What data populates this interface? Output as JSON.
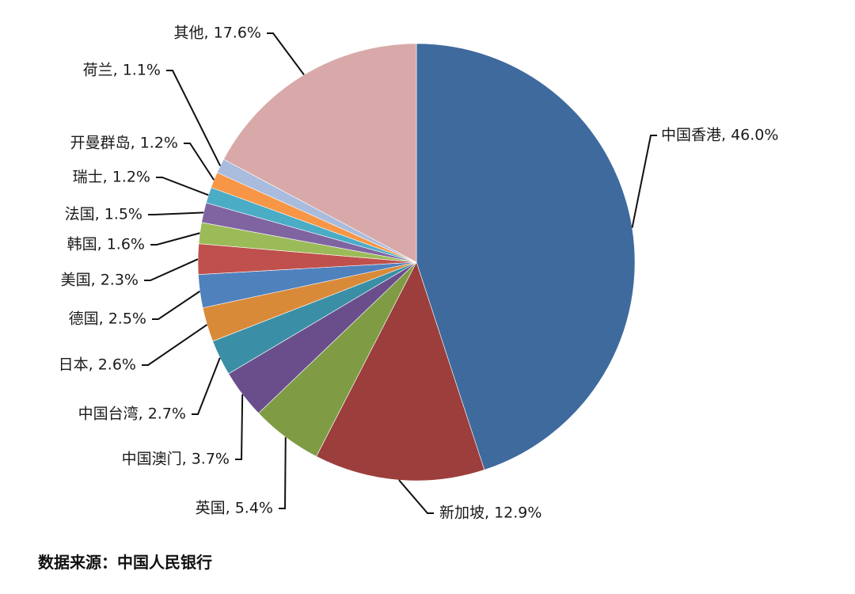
{
  "chart_data": {
    "type": "pie",
    "slices": [
      {
        "label": "中国香港",
        "value": 46.0,
        "text": "中国香港, 46.0%",
        "color": "#3F6A9D"
      },
      {
        "label": "新加坡",
        "value": 12.9,
        "text": "新加坡, 12.9%",
        "color": "#9B3E3C"
      },
      {
        "label": "英国",
        "value": 5.4,
        "text": "英国, 5.4%",
        "color": "#7F9C45"
      },
      {
        "label": "中国澳门",
        "value": 3.7,
        "text": "中国澳门, 3.7%",
        "color": "#6A4E8C"
      },
      {
        "label": "中国台湾",
        "value": 2.7,
        "text": "中国台湾, 2.7%",
        "color": "#3A8FA6"
      },
      {
        "label": "日本",
        "value": 2.6,
        "text": "日本, 2.6%",
        "color": "#D98A39"
      },
      {
        "label": "德国",
        "value": 2.5,
        "text": "德国, 2.5%",
        "color": "#4F81BD"
      },
      {
        "label": "美国",
        "value": 2.3,
        "text": "美国, 2.3%",
        "color": "#C0504D"
      },
      {
        "label": "韩国",
        "value": 1.6,
        "text": "韩国, 1.6%",
        "color": "#9BBB59"
      },
      {
        "label": "法国",
        "value": 1.5,
        "text": "法国, 1.5%",
        "color": "#8064A2"
      },
      {
        "label": "瑞士",
        "value": 1.2,
        "text": "瑞士, 1.2%",
        "color": "#4BACC6"
      },
      {
        "label": "开曼群岛",
        "value": 1.2,
        "text": "开曼群岛, 1.2%",
        "color": "#F79646"
      },
      {
        "label": "荷兰",
        "value": 1.1,
        "text": "荷兰, 1.1%",
        "color": "#A9BCDD"
      },
      {
        "label": "其他",
        "value": 17.6,
        "text": "其他, 17.6%",
        "color": "#D8A9A8"
      }
    ],
    "title": "",
    "legend": "none",
    "start_angle": "12 o'clock",
    "direction": "clockwise"
  },
  "source_note": "数据来源：中国人民银行"
}
